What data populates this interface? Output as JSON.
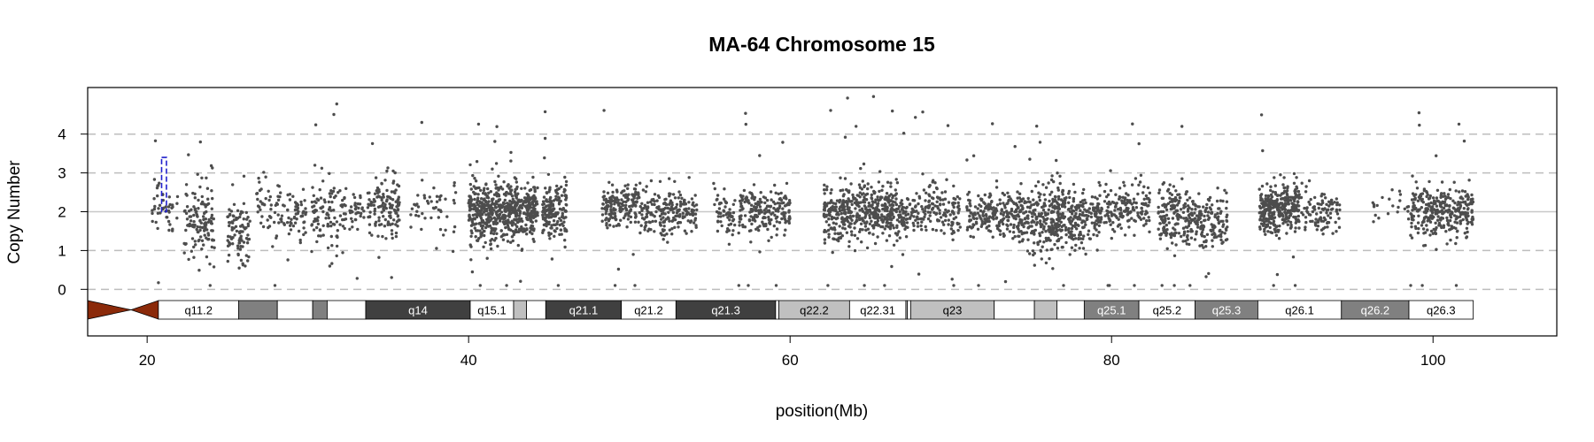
{
  "chart_data": {
    "type": "scatter",
    "title": "MA-64  Chromosome 15",
    "xlabel": "position(Mb)",
    "ylabel": "Copy Number",
    "xlim": [
      16.3,
      107.7
    ],
    "ylim": [
      -1.2,
      5.2
    ],
    "x_ticks": [
      20,
      40,
      60,
      80,
      100
    ],
    "y_ticks": [
      0,
      1,
      2,
      3,
      4
    ],
    "grid": {
      "dashed_y": [
        0,
        1,
        3,
        4
      ],
      "solid_y": [
        2
      ]
    },
    "point_color": "#4d4d4d",
    "ideogram": {
      "centromere": {
        "start": 16.3,
        "mid": 19.0,
        "end": 20.7,
        "color": "#8b2a0a"
      },
      "bands": [
        {
          "name": "q11.2",
          "start": 20.7,
          "end": 25.7,
          "fill": "#ffffff",
          "label_color": "#000000"
        },
        {
          "name": "",
          "start": 25.7,
          "end": 28.1,
          "fill": "#808080",
          "label_color": "#ffffff"
        },
        {
          "name": "",
          "start": 28.1,
          "end": 30.3,
          "fill": "#ffffff",
          "label_color": "#000000"
        },
        {
          "name": "",
          "start": 30.3,
          "end": 31.2,
          "fill": "#808080",
          "label_color": "#ffffff"
        },
        {
          "name": "",
          "start": 31.2,
          "end": 33.6,
          "fill": "#ffffff",
          "label_color": "#000000"
        },
        {
          "name": "q14",
          "start": 33.6,
          "end": 40.1,
          "fill": "#404040",
          "label_color": "#ffffff"
        },
        {
          "name": "q15.1",
          "start": 40.1,
          "end": 42.8,
          "fill": "#ffffff",
          "label_color": "#000000"
        },
        {
          "name": "",
          "start": 42.8,
          "end": 43.6,
          "fill": "#c0c0c0",
          "label_color": "#000000"
        },
        {
          "name": "",
          "start": 43.6,
          "end": 44.8,
          "fill": "#ffffff",
          "label_color": "#000000"
        },
        {
          "name": "q21.1",
          "start": 44.8,
          "end": 49.5,
          "fill": "#404040",
          "label_color": "#ffffff"
        },
        {
          "name": "q21.2",
          "start": 49.5,
          "end": 52.9,
          "fill": "#ffffff",
          "label_color": "#000000"
        },
        {
          "name": "q21.3",
          "start": 52.9,
          "end": 59.1,
          "fill": "#404040",
          "label_color": "#ffffff"
        },
        {
          "name": "",
          "start": 59.1,
          "end": 59.3,
          "fill": "#ffffff",
          "label_color": "#000000"
        },
        {
          "name": "q22.2",
          "start": 59.3,
          "end": 63.7,
          "fill": "#c0c0c0",
          "label_color": "#000000"
        },
        {
          "name": "q22.31",
          "start": 63.7,
          "end": 67.2,
          "fill": "#ffffff",
          "label_color": "#000000"
        },
        {
          "name": "",
          "start": 67.2,
          "end": 67.3,
          "fill": "#c0c0c0",
          "label_color": "#000000"
        },
        {
          "name": "",
          "start": 67.3,
          "end": 67.5,
          "fill": "#ffffff",
          "label_color": "#000000"
        },
        {
          "name": "q23",
          "start": 67.5,
          "end": 72.7,
          "fill": "#c0c0c0",
          "label_color": "#000000"
        },
        {
          "name": "",
          "start": 72.7,
          "end": 75.2,
          "fill": "#ffffff",
          "label_color": "#000000"
        },
        {
          "name": "",
          "start": 75.2,
          "end": 76.6,
          "fill": "#c0c0c0",
          "label_color": "#000000"
        },
        {
          "name": "",
          "start": 76.6,
          "end": 78.3,
          "fill": "#ffffff",
          "label_color": "#000000"
        },
        {
          "name": "q25.1",
          "start": 78.3,
          "end": 81.7,
          "fill": "#808080",
          "label_color": "#ffffff"
        },
        {
          "name": "q25.2",
          "start": 81.7,
          "end": 85.2,
          "fill": "#ffffff",
          "label_color": "#000000"
        },
        {
          "name": "q25.3",
          "start": 85.2,
          "end": 89.1,
          "fill": "#808080",
          "label_color": "#ffffff"
        },
        {
          "name": "q26.1",
          "start": 89.1,
          "end": 94.3,
          "fill": "#ffffff",
          "label_color": "#000000"
        },
        {
          "name": "q26.2",
          "start": 94.3,
          "end": 98.5,
          "fill": "#808080",
          "label_color": "#ffffff"
        },
        {
          "name": "q26.3",
          "start": 98.5,
          "end": 102.5,
          "fill": "#ffffff",
          "label_color": "#000000"
        }
      ]
    },
    "highlight_segment": {
      "start": 20.9,
      "end": 21.2,
      "y_low": 2.0,
      "y_high": 3.4,
      "color": "#1f1fcc"
    },
    "scatter_clusters": [
      {
        "start": 20.3,
        "end": 21.9,
        "center": 2.2,
        "spread": 0.7,
        "n": 45
      },
      {
        "start": 22.3,
        "end": 24.2,
        "center": 1.7,
        "spread": 0.8,
        "n": 130
      },
      {
        "start": 25.0,
        "end": 26.4,
        "center": 1.5,
        "spread": 0.6,
        "n": 90
      },
      {
        "start": 26.8,
        "end": 29.9,
        "center": 2.0,
        "spread": 0.6,
        "n": 110
      },
      {
        "start": 30.2,
        "end": 32.4,
        "center": 1.9,
        "spread": 0.7,
        "n": 110
      },
      {
        "start": 32.6,
        "end": 33.5,
        "center": 2.0,
        "spread": 0.4,
        "n": 35
      },
      {
        "start": 33.7,
        "end": 35.7,
        "center": 2.1,
        "spread": 0.6,
        "n": 140
      },
      {
        "start": 36.3,
        "end": 39.2,
        "center": 2.1,
        "spread": 0.5,
        "n": 50
      },
      {
        "start": 40.0,
        "end": 44.3,
        "center": 2.0,
        "spread": 0.6,
        "n": 620
      },
      {
        "start": 44.6,
        "end": 46.1,
        "center": 1.95,
        "spread": 0.6,
        "n": 170
      },
      {
        "start": 48.3,
        "end": 50.6,
        "center": 2.2,
        "spread": 0.45,
        "n": 170
      },
      {
        "start": 50.6,
        "end": 54.2,
        "center": 2.0,
        "spread": 0.5,
        "n": 210
      },
      {
        "start": 55.2,
        "end": 56.6,
        "center": 1.9,
        "spread": 0.45,
        "n": 60
      },
      {
        "start": 56.8,
        "end": 60.0,
        "center": 2.0,
        "spread": 0.45,
        "n": 200
      },
      {
        "start": 62.1,
        "end": 64.7,
        "center": 2.0,
        "spread": 0.6,
        "n": 260
      },
      {
        "start": 64.7,
        "end": 67.3,
        "center": 1.95,
        "spread": 0.55,
        "n": 260
      },
      {
        "start": 67.3,
        "end": 70.6,
        "center": 2.05,
        "spread": 0.55,
        "n": 170
      },
      {
        "start": 71.0,
        "end": 74.2,
        "center": 1.95,
        "spread": 0.45,
        "n": 210
      },
      {
        "start": 74.2,
        "end": 77.2,
        "center": 1.8,
        "spread": 0.7,
        "n": 310
      },
      {
        "start": 77.3,
        "end": 79.4,
        "center": 1.85,
        "spread": 0.6,
        "n": 180
      },
      {
        "start": 79.5,
        "end": 82.4,
        "center": 2.1,
        "spread": 0.55,
        "n": 160
      },
      {
        "start": 82.9,
        "end": 85.4,
        "center": 1.85,
        "spread": 0.6,
        "n": 200
      },
      {
        "start": 85.4,
        "end": 87.2,
        "center": 1.8,
        "spread": 0.55,
        "n": 120
      },
      {
        "start": 89.2,
        "end": 91.7,
        "center": 2.1,
        "spread": 0.5,
        "n": 330
      },
      {
        "start": 91.8,
        "end": 94.2,
        "center": 2.0,
        "spread": 0.5,
        "n": 100
      },
      {
        "start": 96.2,
        "end": 98.6,
        "center": 2.1,
        "spread": 0.5,
        "n": 22
      },
      {
        "start": 98.6,
        "end": 102.5,
        "center": 2.0,
        "spread": 0.5,
        "n": 320
      }
    ]
  }
}
